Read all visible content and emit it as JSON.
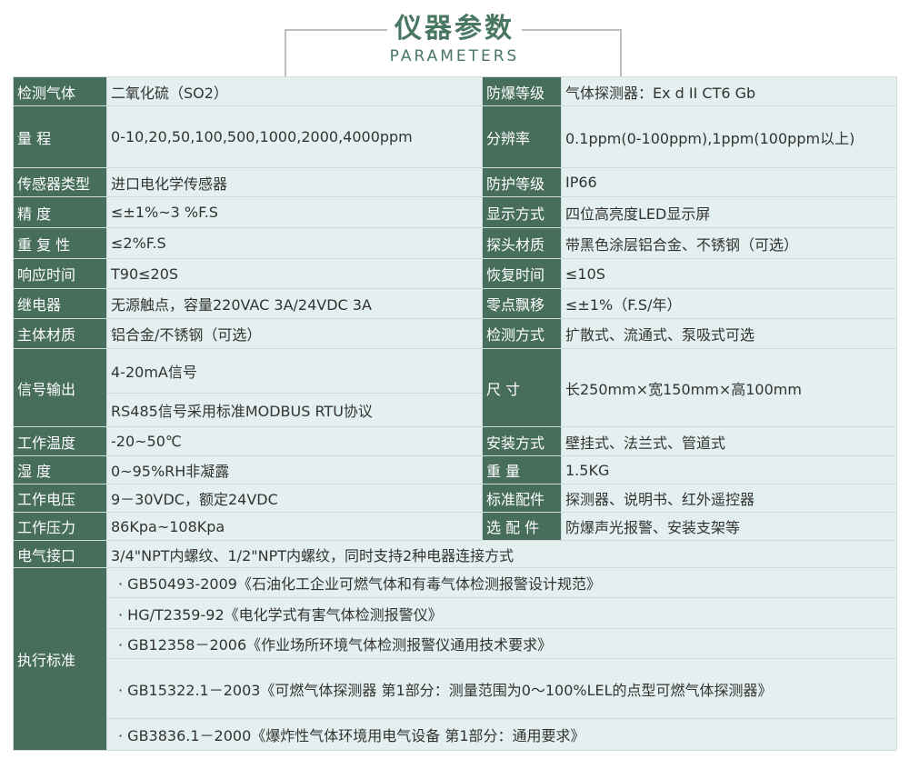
{
  "header": {
    "title": "仪器参数",
    "subtitle": "PARAMETERS"
  },
  "colors": {
    "label_bg": "#476e5c",
    "value_bg": "#e4f0ef",
    "title": "#4a7763"
  },
  "rows": [
    {
      "l1": "检测气体",
      "v1": "二氧化硫（SO2）",
      "l2": "防爆等级",
      "v2": "气体探测器：Ex d II CT6 Gb"
    },
    {
      "l1": "量  程",
      "v1": "0-10,20,50,100,500,1000,2000,4000ppm",
      "l2": "分辨率",
      "v2": "0.1ppm(0-100ppm),1ppm(100ppm以上)"
    },
    {
      "l1": "传感器类型",
      "v1": "进口电化学传感器",
      "l2": "防护等级",
      "v2": "IP66"
    },
    {
      "l1": "精   度",
      "v1": "≤±1%~3 %F.S",
      "l2": "显示方式",
      "v2": "四位高亮度LED显示屏"
    },
    {
      "l1": "重 复 性",
      "v1": "≤2%F.S",
      "l2": "探头材质",
      "v2": "带黑色涂层铝合金、不锈钢（可选）"
    },
    {
      "l1": "响应时间",
      "v1": "T90≤20S",
      "l2": "恢复时间",
      "v2": "≤10S"
    },
    {
      "l1": "继电器",
      "v1": "无源触点，容量220VAC 3A/24VDC 3A",
      "l2": "零点飘移",
      "v2": "≤±1%（F.S/年）"
    },
    {
      "l1": "主体材质",
      "v1": "铝合金/不锈钢（可选）",
      "l2": "检测方式",
      "v2": "扩散式、流通式、泵吸式可选"
    }
  ],
  "signal": {
    "label": "信号输出",
    "v1": "4-20mA信号",
    "v1b": "RS485信号采用标准MODBUS RTU协议",
    "l2": "尺  寸",
    "v2": "长250mm×宽150mm×高100mm"
  },
  "rows2": [
    {
      "l1": "工作温度",
      "v1": "-20~50℃",
      "l2": "安装方式",
      "v2": "壁挂式、法兰式、管道式"
    },
    {
      "l1": "湿   度",
      "v1": "0~95%RH非凝露",
      "l2": "重   量",
      "v2": "1.5KG"
    },
    {
      "l1": "工作电压",
      "v1": "9－30VDC，额定24VDC",
      "l2": "标准配件",
      "v2": "探测器、说明书、红外遥控器"
    },
    {
      "l1": "工作压力",
      "v1": "86Kpa~108Kpa",
      "l2": "选 配 件",
      "v2": "防爆声光报警、安装支架等"
    }
  ],
  "interface": {
    "label": "电气接口",
    "value": "3/4\"NPT内螺纹、1/2\"NPT内螺纹，同时支持2种电器连接方式"
  },
  "standards": {
    "label": "执行标准",
    "items": [
      "·  GB50493-2009《石油化工企业可燃气体和有毒气体检测报警设计规范》",
      "·  HG/T2359-92《电化学式有害气体检测报警仪》",
      "·  GB12358－2006《作业场所环境气体检测报警仪通用技术要求》",
      "·  GB15322.1－2003《可燃气体探测器 第1部分：测量范围为0～100%LEL的点型可燃气体探测器》",
      "·  GB3836.1－2000《爆炸性气体环境用电气设备 第1部分：通用要求》"
    ]
  }
}
